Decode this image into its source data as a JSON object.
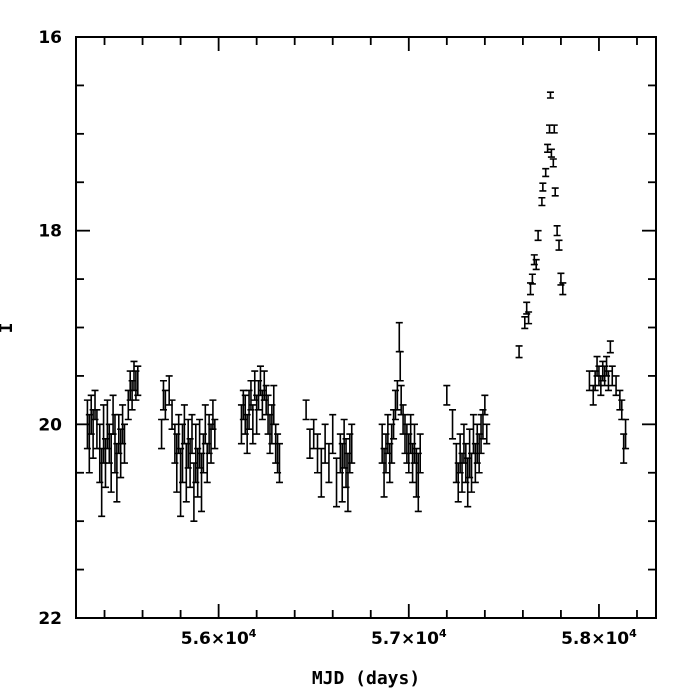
{
  "chart_data": {
    "type": "scatter",
    "title": "",
    "xlabel": "MJD (days)",
    "ylabel": "I",
    "xlim": [
      55250,
      58300
    ],
    "ylim": [
      22,
      16
    ],
    "y_inverted": true,
    "grid": false,
    "x_ticks": [
      {
        "value": 56000,
        "mantissa": "5.6",
        "exp": "4"
      },
      {
        "value": 57000,
        "mantissa": "5.7",
        "exp": "4"
      },
      {
        "value": 58000,
        "mantissa": "5.8",
        "exp": "4"
      }
    ],
    "y_ticks": [
      {
        "value": 16,
        "label": "16"
      },
      {
        "value": 18,
        "label": "18"
      },
      {
        "value": 20,
        "label": "20"
      },
      {
        "value": 22,
        "label": "22"
      }
    ],
    "error_bar_style": "I-beam",
    "series": [
      {
        "points": [
          {
            "x": 55310,
            "y": 20.0,
            "err": 0.25
          },
          {
            "x": 55320,
            "y": 20.2,
            "err": 0.3
          },
          {
            "x": 55330,
            "y": 19.9,
            "err": 0.2
          },
          {
            "x": 55340,
            "y": 20.1,
            "err": 0.25
          },
          {
            "x": 55350,
            "y": 19.8,
            "err": 0.15
          },
          {
            "x": 55360,
            "y": 20.05,
            "err": 0.2
          },
          {
            "x": 55375,
            "y": 20.3,
            "err": 0.3
          },
          {
            "x": 55385,
            "y": 20.6,
            "err": 0.35
          },
          {
            "x": 55395,
            "y": 20.1,
            "err": 0.3
          },
          {
            "x": 55405,
            "y": 20.4,
            "err": 0.25
          },
          {
            "x": 55415,
            "y": 20.0,
            "err": 0.25
          },
          {
            "x": 55425,
            "y": 20.2,
            "err": 0.2
          },
          {
            "x": 55435,
            "y": 20.4,
            "err": 0.3
          },
          {
            "x": 55445,
            "y": 19.9,
            "err": 0.2
          },
          {
            "x": 55455,
            "y": 20.2,
            "err": 0.3
          },
          {
            "x": 55465,
            "y": 20.5,
            "err": 0.3
          },
          {
            "x": 55475,
            "y": 20.1,
            "err": 0.2
          },
          {
            "x": 55485,
            "y": 20.3,
            "err": 0.25
          },
          {
            "x": 55495,
            "y": 20.0,
            "err": 0.2
          },
          {
            "x": 55505,
            "y": 20.2,
            "err": 0.2
          },
          {
            "x": 55525,
            "y": 19.8,
            "err": 0.15
          },
          {
            "x": 55535,
            "y": 19.6,
            "err": 0.15
          },
          {
            "x": 55545,
            "y": 19.7,
            "err": 0.15
          },
          {
            "x": 55555,
            "y": 19.5,
            "err": 0.15
          },
          {
            "x": 55565,
            "y": 19.6,
            "err": 0.15
          },
          {
            "x": 55575,
            "y": 19.55,
            "err": 0.15
          },
          {
            "x": 55700,
            "y": 20.1,
            "err": 0.15
          },
          {
            "x": 55710,
            "y": 19.7,
            "err": 0.15
          },
          {
            "x": 55720,
            "y": 19.8,
            "err": 0.15
          },
          {
            "x": 55740,
            "y": 19.65,
            "err": 0.15
          },
          {
            "x": 55755,
            "y": 19.9,
            "err": 0.15
          },
          {
            "x": 55770,
            "y": 20.2,
            "err": 0.2
          },
          {
            "x": 55780,
            "y": 20.4,
            "err": 0.3
          },
          {
            "x": 55790,
            "y": 20.1,
            "err": 0.2
          },
          {
            "x": 55800,
            "y": 20.6,
            "err": 0.35
          },
          {
            "x": 55810,
            "y": 20.3,
            "err": 0.3
          },
          {
            "x": 55820,
            "y": 20.0,
            "err": 0.2
          },
          {
            "x": 55830,
            "y": 20.5,
            "err": 0.3
          },
          {
            "x": 55840,
            "y": 20.2,
            "err": 0.25
          },
          {
            "x": 55850,
            "y": 20.4,
            "err": 0.25
          },
          {
            "x": 55860,
            "y": 20.1,
            "err": 0.2
          },
          {
            "x": 55870,
            "y": 20.7,
            "err": 0.3
          },
          {
            "x": 55880,
            "y": 20.3,
            "err": 0.3
          },
          {
            "x": 55890,
            "y": 20.5,
            "err": 0.25
          },
          {
            "x": 55900,
            "y": 20.2,
            "err": 0.25
          },
          {
            "x": 55910,
            "y": 20.6,
            "err": 0.3
          },
          {
            "x": 55920,
            "y": 20.3,
            "err": 0.2
          },
          {
            "x": 55930,
            "y": 20.0,
            "err": 0.2
          },
          {
            "x": 55940,
            "y": 20.4,
            "err": 0.2
          },
          {
            "x": 55950,
            "y": 20.1,
            "err": 0.2
          },
          {
            "x": 55960,
            "y": 20.2,
            "err": 0.2
          },
          {
            "x": 55970,
            "y": 19.9,
            "err": 0.15
          },
          {
            "x": 55980,
            "y": 20.1,
            "err": 0.15
          },
          {
            "x": 56120,
            "y": 20.0,
            "err": 0.2
          },
          {
            "x": 56130,
            "y": 19.8,
            "err": 0.15
          },
          {
            "x": 56140,
            "y": 19.9,
            "err": 0.2
          },
          {
            "x": 56150,
            "y": 20.1,
            "err": 0.2
          },
          {
            "x": 56160,
            "y": 19.85,
            "err": 0.2
          },
          {
            "x": 56170,
            "y": 19.7,
            "err": 0.15
          },
          {
            "x": 56180,
            "y": 20.0,
            "err": 0.2
          },
          {
            "x": 56190,
            "y": 19.6,
            "err": 0.15
          },
          {
            "x": 56200,
            "y": 19.9,
            "err": 0.2
          },
          {
            "x": 56210,
            "y": 19.7,
            "err": 0.15
          },
          {
            "x": 56220,
            "y": 19.55,
            "err": 0.15
          },
          {
            "x": 56230,
            "y": 19.8,
            "err": 0.15
          },
          {
            "x": 56240,
            "y": 19.6,
            "err": 0.15
          },
          {
            "x": 56250,
            "y": 19.75,
            "err": 0.15
          },
          {
            "x": 56260,
            "y": 19.9,
            "err": 0.2
          },
          {
            "x": 56270,
            "y": 20.1,
            "err": 0.2
          },
          {
            "x": 56280,
            "y": 20.0,
            "err": 0.2
          },
          {
            "x": 56290,
            "y": 19.8,
            "err": 0.2
          },
          {
            "x": 56300,
            "y": 20.2,
            "err": 0.2
          },
          {
            "x": 56310,
            "y": 20.3,
            "err": 0.2
          },
          {
            "x": 56320,
            "y": 20.4,
            "err": 0.2
          },
          {
            "x": 56460,
            "y": 19.85,
            "err": 0.1
          },
          {
            "x": 56480,
            "y": 20.2,
            "err": 0.15
          },
          {
            "x": 56500,
            "y": 20.1,
            "err": 0.15
          },
          {
            "x": 56520,
            "y": 20.3,
            "err": 0.2
          },
          {
            "x": 56540,
            "y": 20.5,
            "err": 0.25
          },
          {
            "x": 56560,
            "y": 20.2,
            "err": 0.2
          },
          {
            "x": 56580,
            "y": 20.4,
            "err": 0.2
          },
          {
            "x": 56600,
            "y": 20.1,
            "err": 0.2
          },
          {
            "x": 56620,
            "y": 20.6,
            "err": 0.25
          },
          {
            "x": 56640,
            "y": 20.3,
            "err": 0.2
          },
          {
            "x": 56650,
            "y": 20.5,
            "err": 0.3
          },
          {
            "x": 56660,
            "y": 20.2,
            "err": 0.25
          },
          {
            "x": 56670,
            "y": 20.4,
            "err": 0.25
          },
          {
            "x": 56680,
            "y": 20.6,
            "err": 0.3
          },
          {
            "x": 56690,
            "y": 20.3,
            "err": 0.2
          },
          {
            "x": 56700,
            "y": 20.2,
            "err": 0.2
          },
          {
            "x": 56860,
            "y": 20.2,
            "err": 0.2
          },
          {
            "x": 56870,
            "y": 20.5,
            "err": 0.25
          },
          {
            "x": 56880,
            "y": 20.3,
            "err": 0.2
          },
          {
            "x": 56890,
            "y": 20.1,
            "err": 0.2
          },
          {
            "x": 56900,
            "y": 20.4,
            "err": 0.2
          },
          {
            "x": 56910,
            "y": 20.2,
            "err": 0.2
          },
          {
            "x": 56920,
            "y": 20.0,
            "err": 0.15
          },
          {
            "x": 56930,
            "y": 19.8,
            "err": 0.15
          },
          {
            "x": 56940,
            "y": 19.7,
            "err": 0.15
          },
          {
            "x": 56950,
            "y": 19.1,
            "err": 0.15
          },
          {
            "x": 56955,
            "y": 19.4,
            "err": 0.15
          },
          {
            "x": 56960,
            "y": 19.75,
            "err": 0.15
          },
          {
            "x": 56970,
            "y": 19.95,
            "err": 0.15
          },
          {
            "x": 56980,
            "y": 20.1,
            "err": 0.2
          },
          {
            "x": 56990,
            "y": 20.2,
            "err": 0.2
          },
          {
            "x": 57000,
            "y": 20.3,
            "err": 0.2
          },
          {
            "x": 57010,
            "y": 20.1,
            "err": 0.2
          },
          {
            "x": 57020,
            "y": 20.4,
            "err": 0.2
          },
          {
            "x": 57030,
            "y": 20.2,
            "err": 0.2
          },
          {
            "x": 57040,
            "y": 20.5,
            "err": 0.25
          },
          {
            "x": 57050,
            "y": 20.6,
            "err": 0.3
          },
          {
            "x": 57060,
            "y": 20.3,
            "err": 0.2
          },
          {
            "x": 57200,
            "y": 19.7,
            "err": 0.1
          },
          {
            "x": 57230,
            "y": 20.0,
            "err": 0.15
          },
          {
            "x": 57250,
            "y": 20.4,
            "err": 0.2
          },
          {
            "x": 57260,
            "y": 20.6,
            "err": 0.2
          },
          {
            "x": 57270,
            "y": 20.3,
            "err": 0.2
          },
          {
            "x": 57280,
            "y": 20.5,
            "err": 0.2
          },
          {
            "x": 57290,
            "y": 20.2,
            "err": 0.2
          },
          {
            "x": 57300,
            "y": 20.4,
            "err": 0.2
          },
          {
            "x": 57310,
            "y": 20.6,
            "err": 0.25
          },
          {
            "x": 57320,
            "y": 20.3,
            "err": 0.25
          },
          {
            "x": 57330,
            "y": 20.5,
            "err": 0.2
          },
          {
            "x": 57340,
            "y": 20.1,
            "err": 0.2
          },
          {
            "x": 57350,
            "y": 20.4,
            "err": 0.2
          },
          {
            "x": 57360,
            "y": 20.2,
            "err": 0.2
          },
          {
            "x": 57370,
            "y": 20.3,
            "err": 0.2
          },
          {
            "x": 57380,
            "y": 20.1,
            "err": 0.2
          },
          {
            "x": 57390,
            "y": 20.0,
            "err": 0.15
          },
          {
            "x": 57400,
            "y": 19.8,
            "err": 0.1
          },
          {
            "x": 57410,
            "y": 20.1,
            "err": 0.1
          },
          {
            "x": 57580,
            "y": 19.25,
            "err": 0.06
          },
          {
            "x": 57610,
            "y": 18.95,
            "err": 0.06
          },
          {
            "x": 57620,
            "y": 18.8,
            "err": 0.06
          },
          {
            "x": 57630,
            "y": 18.9,
            "err": 0.06
          },
          {
            "x": 57640,
            "y": 18.6,
            "err": 0.06
          },
          {
            "x": 57650,
            "y": 18.5,
            "err": 0.05
          },
          {
            "x": 57660,
            "y": 18.3,
            "err": 0.05
          },
          {
            "x": 57670,
            "y": 18.35,
            "err": 0.05
          },
          {
            "x": 57680,
            "y": 18.05,
            "err": 0.05
          },
          {
            "x": 57700,
            "y": 17.7,
            "err": 0.04
          },
          {
            "x": 57705,
            "y": 17.55,
            "err": 0.04
          },
          {
            "x": 57720,
            "y": 17.4,
            "err": 0.04
          },
          {
            "x": 57730,
            "y": 17.15,
            "err": 0.04
          },
          {
            "x": 57740,
            "y": 16.95,
            "err": 0.04
          },
          {
            "x": 57745,
            "y": 16.6,
            "err": 0.03
          },
          {
            "x": 57750,
            "y": 17.2,
            "err": 0.04
          },
          {
            "x": 57760,
            "y": 17.3,
            "err": 0.04
          },
          {
            "x": 57765,
            "y": 16.95,
            "err": 0.04
          },
          {
            "x": 57770,
            "y": 17.6,
            "err": 0.04
          },
          {
            "x": 57780,
            "y": 18.0,
            "err": 0.05
          },
          {
            "x": 57790,
            "y": 18.15,
            "err": 0.05
          },
          {
            "x": 57800,
            "y": 18.5,
            "err": 0.06
          },
          {
            "x": 57810,
            "y": 18.6,
            "err": 0.06
          },
          {
            "x": 57950,
            "y": 19.55,
            "err": 0.1
          },
          {
            "x": 57970,
            "y": 19.7,
            "err": 0.1
          },
          {
            "x": 57980,
            "y": 19.55,
            "err": 0.1
          },
          {
            "x": 57990,
            "y": 19.4,
            "err": 0.1
          },
          {
            "x": 58000,
            "y": 19.5,
            "err": 0.1
          },
          {
            "x": 58010,
            "y": 19.6,
            "err": 0.1
          },
          {
            "x": 58020,
            "y": 19.45,
            "err": 0.1
          },
          {
            "x": 58030,
            "y": 19.5,
            "err": 0.1
          },
          {
            "x": 58040,
            "y": 19.4,
            "err": 0.1
          },
          {
            "x": 58050,
            "y": 19.55,
            "err": 0.1
          },
          {
            "x": 58060,
            "y": 19.2,
            "err": 0.06
          },
          {
            "x": 58070,
            "y": 19.5,
            "err": 0.1
          },
          {
            "x": 58090,
            "y": 19.6,
            "err": 0.1
          },
          {
            "x": 58110,
            "y": 19.75,
            "err": 0.1
          },
          {
            "x": 58120,
            "y": 19.85,
            "err": 0.1
          },
          {
            "x": 58130,
            "y": 20.25,
            "err": 0.15
          },
          {
            "x": 58140,
            "y": 20.1,
            "err": 0.15
          }
        ]
      }
    ]
  }
}
